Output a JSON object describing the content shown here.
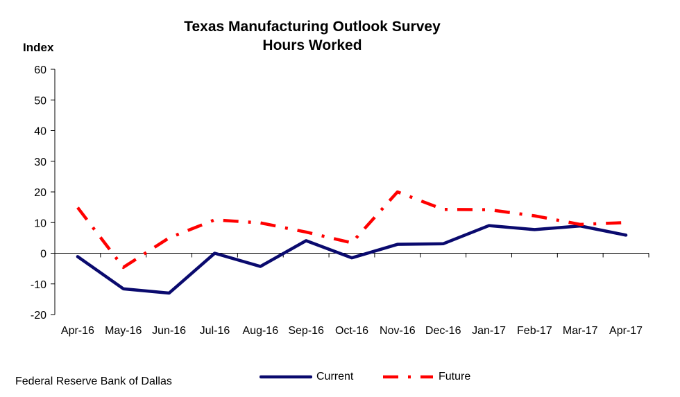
{
  "chart_data": {
    "type": "line",
    "title": "Texas Manufacturing Outlook Survey",
    "subtitle": "Hours Worked",
    "ylabel": "Index",
    "xlabel": "",
    "categories": [
      "Apr-16",
      "May-16",
      "Jun-16",
      "Jul-16",
      "Aug-16",
      "Sep-16",
      "Oct-16",
      "Nov-16",
      "Dec-16",
      "Jan-17",
      "Feb-17",
      "Mar-17",
      "Apr-17"
    ],
    "ylim": [
      -20,
      60
    ],
    "yticks": [
      -20,
      -10,
      0,
      10,
      20,
      30,
      40,
      50,
      60
    ],
    "grid": false,
    "legend_position": "bottom",
    "series": [
      {
        "name": "Current",
        "color": "#0A0A6E",
        "style": "solid",
        "values": [
          -1.1,
          -11.6,
          -13.0,
          0.0,
          -4.3,
          4.1,
          -1.5,
          2.9,
          3.1,
          9.0,
          7.7,
          8.9,
          5.9
        ]
      },
      {
        "name": "Future",
        "color": "#FF0000",
        "style": "dash-dot",
        "values": [
          14.9,
          -4.6,
          5.0,
          10.9,
          9.9,
          6.9,
          3.4,
          20.0,
          14.3,
          14.2,
          12.2,
          9.4,
          10.0
        ]
      }
    ]
  },
  "source": "Federal Reserve Bank of Dallas"
}
